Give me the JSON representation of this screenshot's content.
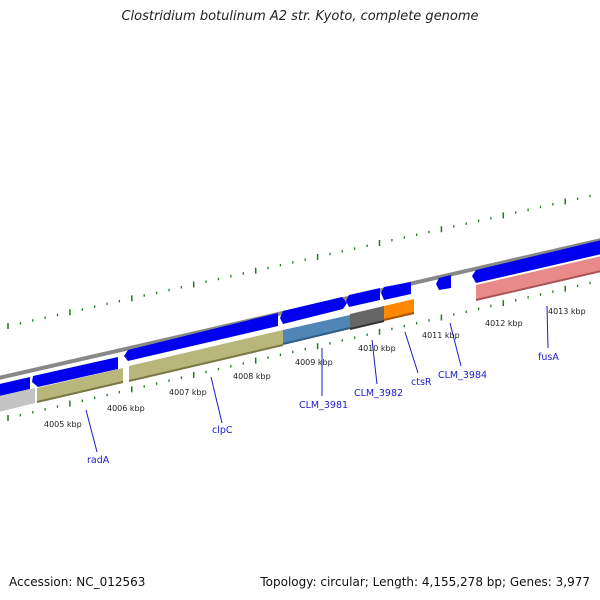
{
  "title": "Clostridium botulinum A2 str. Kyoto, complete genome",
  "accession": "Accession: NC_012563",
  "summary": "Topology: circular; Length: 4,155,278 bp; Genes: 3,977",
  "kbp_labels": [
    "4005 kbp",
    "4006 kbp",
    "4007 kbp",
    "4008 kbp",
    "4009 kbp",
    "4010 kbp",
    "4011 kbp",
    "4012 kbp",
    "4013 kbp"
  ],
  "gene_labels": [
    "radA",
    "clpC",
    "CLM_3981",
    "CLM_3982",
    "ctsR",
    "CLM_3984",
    "fusA"
  ],
  "colors": {
    "backbone": "#888888",
    "cds_arrow": "#0000ee",
    "tick": "#1f7a1f",
    "label_line": "#1a1acc",
    "feature_gray": "#bdbdbd",
    "feature_olive": "#b8b67a",
    "feature_steelblue": "#4f86b5",
    "feature_darkgray": "#666666",
    "feature_orange": "#ff8800",
    "feature_pink": "#e98a8a"
  }
}
